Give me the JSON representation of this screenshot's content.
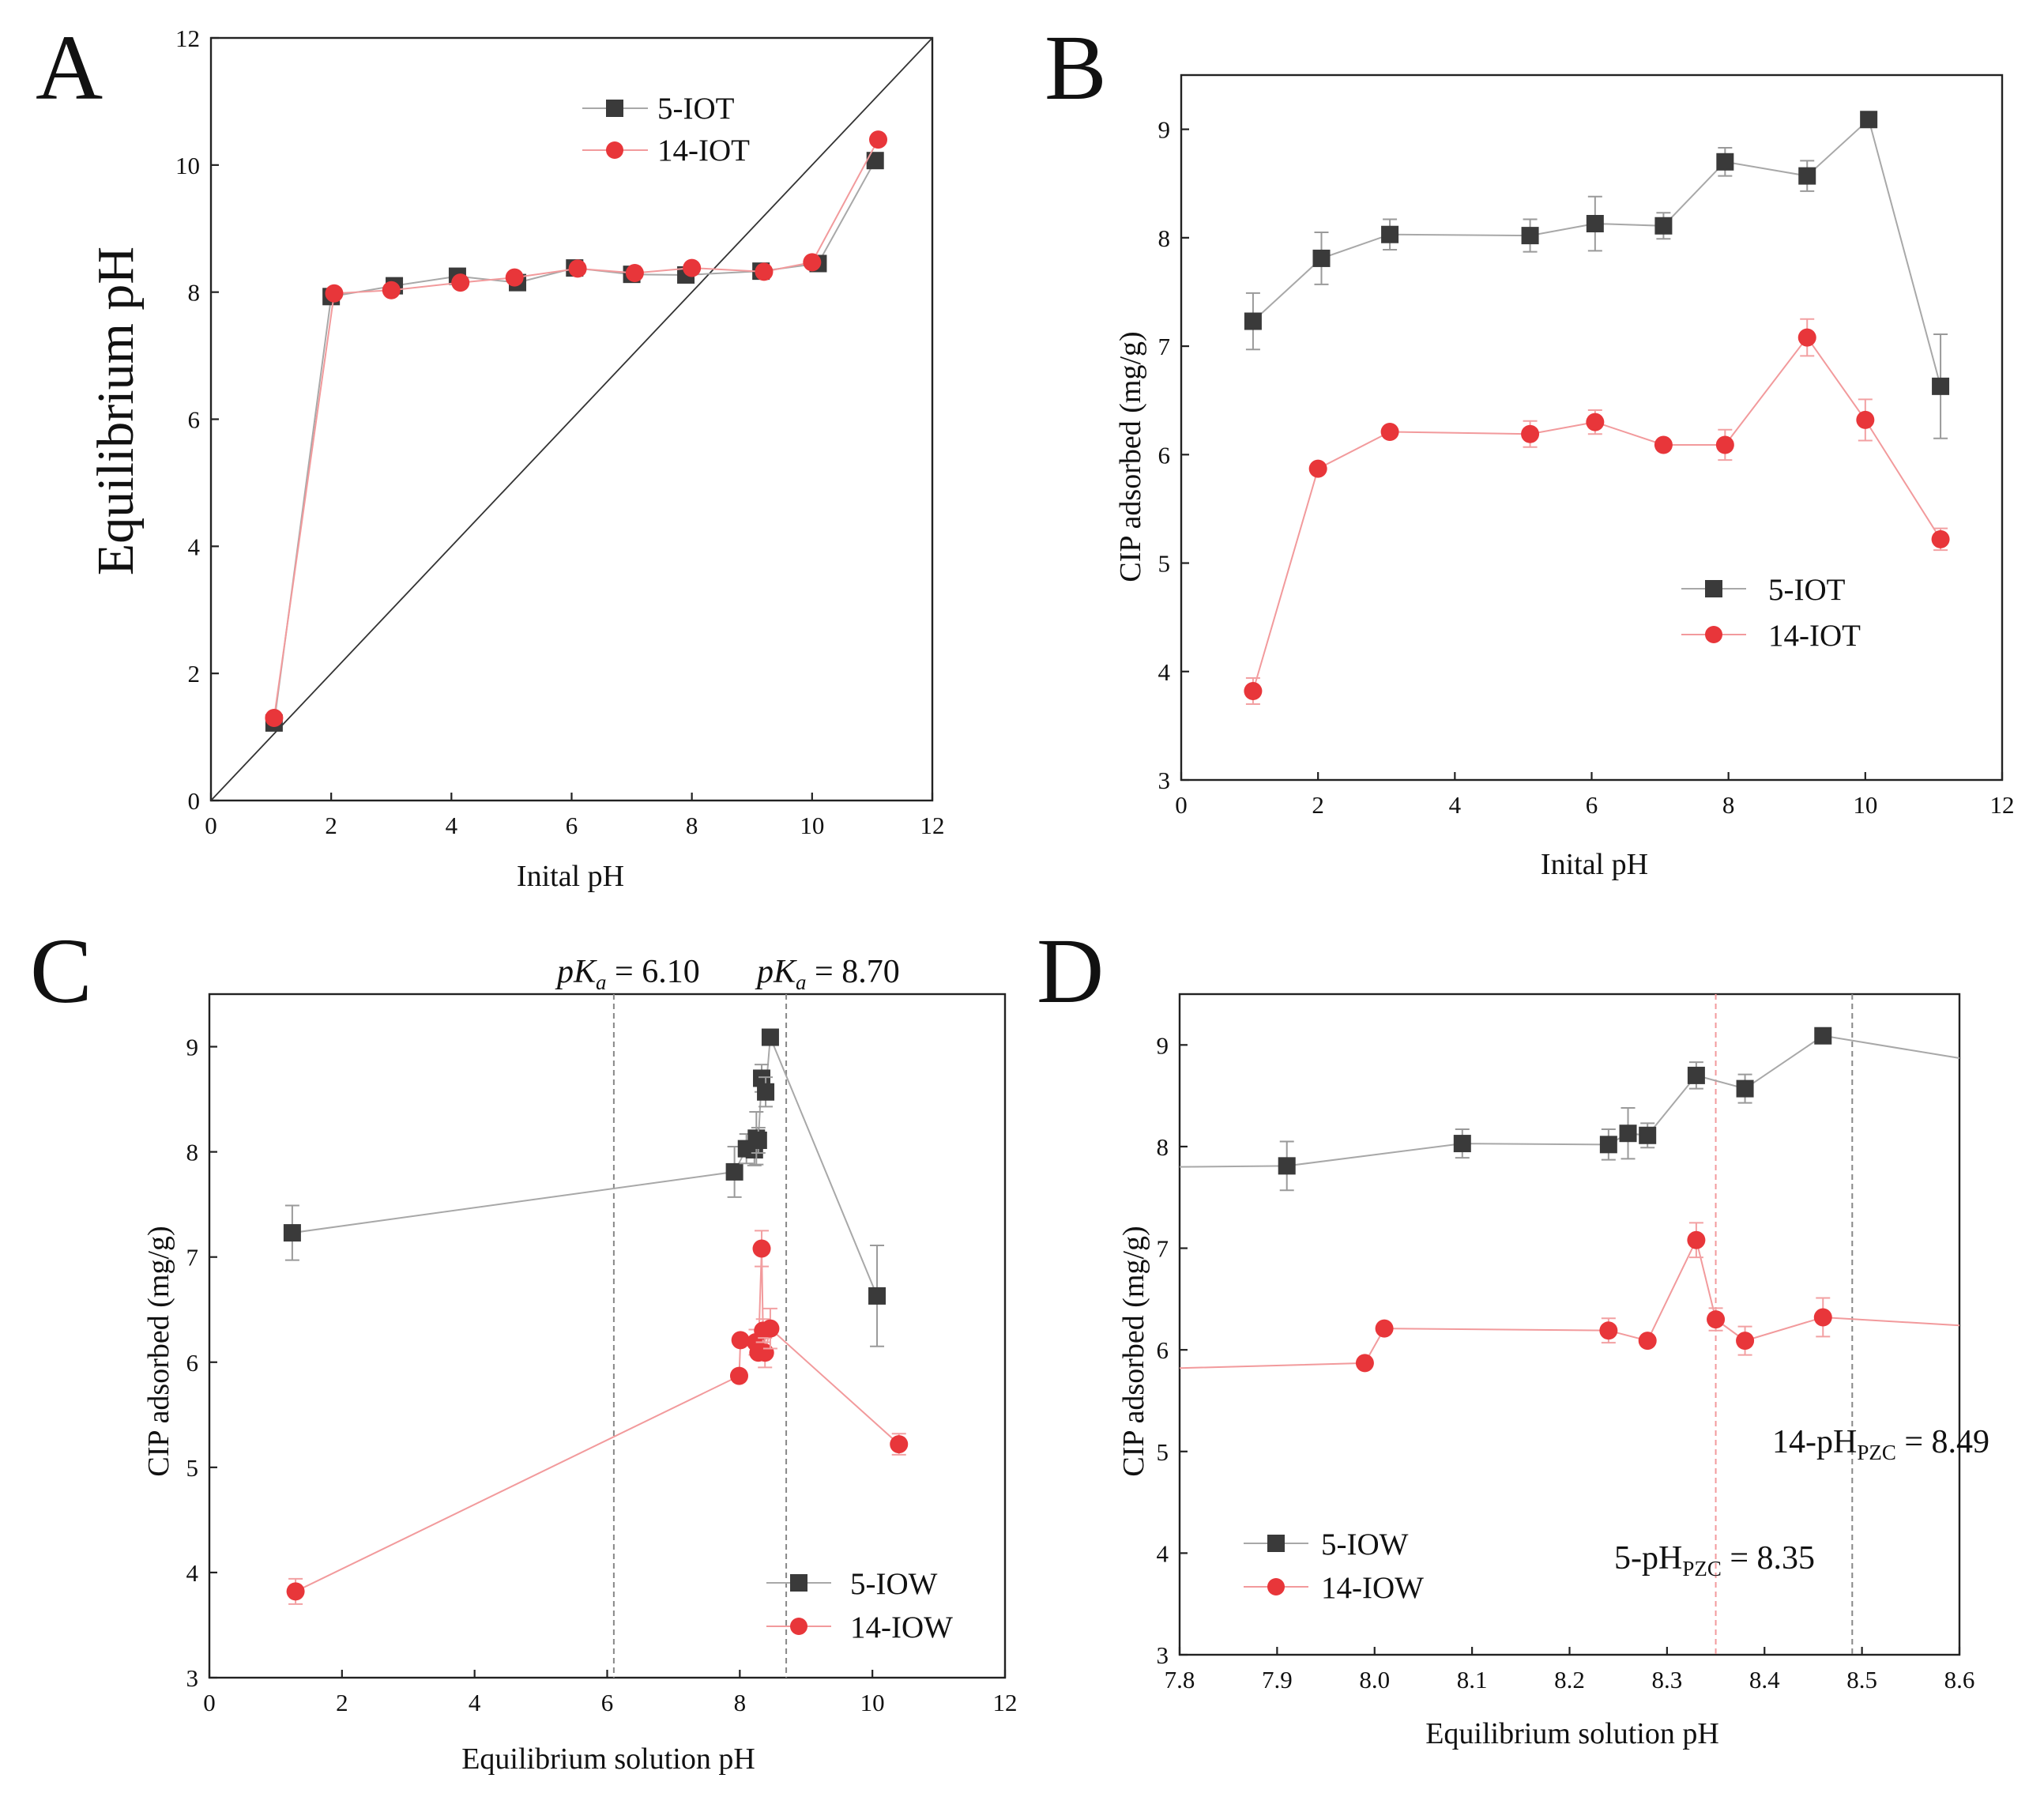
{
  "colors": {
    "series_5": "#3a3a3a",
    "series_14": "#e8363a",
    "line_5": "#a8a8a8",
    "line_14": "#f29a9c",
    "frame": "#222222"
  },
  "panels": [
    {
      "id": "A",
      "letter": "A",
      "chart_data": {
        "type": "line",
        "title": "",
        "xlabel": "Inital pH",
        "ylabel": "Equilibrium pH",
        "xlim": [
          0,
          12
        ],
        "ylim": [
          0,
          12
        ],
        "xticks": [
          0,
          2,
          4,
          6,
          8,
          10,
          12
        ],
        "yticks": [
          0,
          2,
          4,
          6,
          8,
          10,
          12
        ],
        "legend_position": "top-right",
        "reference_line": {
          "label": "y = x",
          "x": [
            0,
            12
          ],
          "y": [
            0,
            12
          ]
        },
        "series": [
          {
            "name": "5-IOT",
            "marker": "square",
            "x": [
              1.05,
              2.0,
              3.05,
              4.1,
              5.1,
              6.05,
              7.0,
              7.9,
              9.15,
              10.1,
              11.05
            ],
            "y": [
              1.22,
              7.93,
              8.1,
              8.25,
              8.15,
              8.38,
              8.28,
              8.27,
              8.33,
              8.45,
              10.07
            ]
          },
          {
            "name": "14-IOT",
            "marker": "circle",
            "x": [
              1.05,
              2.05,
              3.0,
              4.15,
              5.05,
              6.1,
              7.05,
              8.0,
              9.2,
              10.0,
              11.1
            ],
            "y": [
              1.3,
              7.98,
              8.03,
              8.15,
              8.23,
              8.37,
              8.3,
              8.38,
              8.32,
              8.47,
              10.4
            ]
          }
        ]
      }
    },
    {
      "id": "B",
      "letter": "B",
      "chart_data": {
        "type": "line",
        "title": "",
        "xlabel": "Inital pH",
        "ylabel": "CIP adsorbed (mg/g)",
        "xlim": [
          0,
          12
        ],
        "ylim": [
          3,
          9.5
        ],
        "xticks": [
          0,
          2,
          4,
          6,
          8,
          10,
          12
        ],
        "yticks": [
          3,
          4,
          5,
          6,
          7,
          8,
          9
        ],
        "legend_position": "bottom-right",
        "series": [
          {
            "name": "5-IOT",
            "marker": "square",
            "x": [
              1.05,
              2.05,
              3.05,
              5.1,
              6.05,
              7.05,
              7.95,
              9.15,
              10.05,
              11.1
            ],
            "y": [
              7.23,
              7.81,
              8.03,
              8.02,
              8.13,
              8.11,
              8.7,
              8.57,
              9.09,
              6.63
            ],
            "err": [
              0.26,
              0.24,
              0.14,
              0.15,
              0.25,
              0.12,
              0.13,
              0.14,
              0.0,
              0.48
            ]
          },
          {
            "name": "14-IOT",
            "marker": "circle",
            "x": [
              1.05,
              2.0,
              3.05,
              5.1,
              6.05,
              7.05,
              7.95,
              9.15,
              10.0,
              11.1
            ],
            "y": [
              3.82,
              5.87,
              6.21,
              6.19,
              6.3,
              6.09,
              6.09,
              7.08,
              6.32,
              5.22
            ],
            "err": [
              0.12,
              0.0,
              0.0,
              0.12,
              0.11,
              0.0,
              0.14,
              0.17,
              0.19,
              0.1
            ]
          }
        ]
      }
    },
    {
      "id": "C",
      "letter": "C",
      "chart_data": {
        "type": "scatter",
        "title": "",
        "xlabel": "Equilibrium solution pH",
        "ylabel": "CIP adsorbed (mg/g)",
        "xlim": [
          0,
          12
        ],
        "ylim": [
          3,
          9.5
        ],
        "xticks": [
          0,
          2,
          4,
          6,
          8,
          10,
          12
        ],
        "yticks": [
          3,
          4,
          5,
          6,
          7,
          8,
          9
        ],
        "legend_position": "bottom-right",
        "vlines": [
          {
            "x": 6.1,
            "prefix": "p",
            "italic": "K",
            "sub": "a",
            "suffix": " = 6.10"
          },
          {
            "x": 8.7,
            "prefix": "p",
            "italic": "K",
            "sub": "a",
            "suffix": " = 8.70"
          }
        ],
        "series": [
          {
            "name": "5-IOW",
            "marker": "square",
            "x": [
              1.25,
              7.92,
              8.1,
              8.22,
              8.25,
              8.28,
              8.33,
              8.39,
              8.46,
              10.07
            ],
            "y": [
              7.23,
              7.81,
              8.03,
              8.02,
              8.13,
              8.11,
              8.7,
              8.57,
              9.09,
              6.63
            ],
            "err": [
              0.26,
              0.24,
              0.14,
              0.15,
              0.25,
              0.12,
              0.13,
              0.14,
              0.0,
              0.48
            ]
          },
          {
            "name": "14-IOW",
            "marker": "circle",
            "x": [
              1.3,
              7.99,
              8.01,
              8.24,
              8.28,
              8.33,
              8.35,
              8.38,
              8.46,
              10.4
            ],
            "y": [
              3.82,
              5.87,
              6.21,
              6.19,
              6.09,
              7.08,
              6.3,
              6.09,
              6.32,
              5.22
            ],
            "err": [
              0.12,
              0.0,
              0.0,
              0.12,
              0.0,
              0.17,
              0.11,
              0.14,
              0.19,
              0.1
            ]
          }
        ]
      }
    },
    {
      "id": "D",
      "letter": "D",
      "chart_data": {
        "type": "line",
        "title": "",
        "xlabel": "Equilibrium solution pH",
        "ylabel": "CIP adsorbed (mg/g)",
        "xlim": [
          7.8,
          8.6
        ],
        "ylim": [
          3,
          9.5
        ],
        "xticks": [
          7.8,
          7.9,
          8.0,
          8.1,
          8.2,
          8.3,
          8.4,
          8.5,
          8.6
        ],
        "xtick_labels": [
          "7.8",
          "7.9",
          "8.0",
          "8.1",
          "8.2",
          "8.3",
          "8.4",
          "8.5",
          "8.6"
        ],
        "yticks": [
          3,
          4,
          5,
          6,
          7,
          8,
          9
        ],
        "legend_position": "bottom-left",
        "vlines": [
          {
            "x": 8.35,
            "color": "#f29a9c",
            "prefix": "5-pH",
            "sub": "PZC",
            "suffix": " = 8.35"
          },
          {
            "x": 8.49,
            "color": "#888888",
            "prefix": "14-pH",
            "sub": "PZC",
            "suffix": " = 8.49"
          }
        ],
        "series": [
          {
            "name": "5-IOW",
            "marker": "square",
            "x": [
              7.91,
              8.09,
              8.24,
              8.26,
              8.28,
              8.33,
              8.38,
              8.46
            ],
            "y": [
              7.81,
              8.03,
              8.02,
              8.13,
              8.11,
              8.7,
              8.57,
              9.09
            ],
            "err": [
              0.24,
              0.14,
              0.15,
              0.25,
              0.12,
              0.13,
              0.14,
              0.0
            ],
            "line_x": [
              7.8,
              7.91,
              8.09,
              8.24,
              8.26,
              8.28,
              8.33,
              8.38,
              8.46,
              8.6
            ],
            "line_y": [
              7.8,
              7.81,
              8.03,
              8.02,
              8.13,
              8.11,
              8.7,
              8.57,
              9.09,
              8.87
            ]
          },
          {
            "name": "14-IOW",
            "marker": "circle",
            "x": [
              7.99,
              8.01,
              8.24,
              8.28,
              8.33,
              8.35,
              8.38,
              8.46
            ],
            "y": [
              5.87,
              6.21,
              6.19,
              6.09,
              7.08,
              6.3,
              6.09,
              6.32
            ],
            "err": [
              0.0,
              0.0,
              0.12,
              0.0,
              0.17,
              0.11,
              0.14,
              0.19
            ],
            "line_x": [
              7.8,
              7.99,
              8.01,
              8.24,
              8.28,
              8.33,
              8.35,
              8.38,
              8.46,
              8.6
            ],
            "line_y": [
              5.82,
              5.87,
              6.21,
              6.19,
              6.09,
              7.08,
              6.3,
              6.09,
              6.32,
              6.24
            ]
          }
        ]
      }
    }
  ]
}
